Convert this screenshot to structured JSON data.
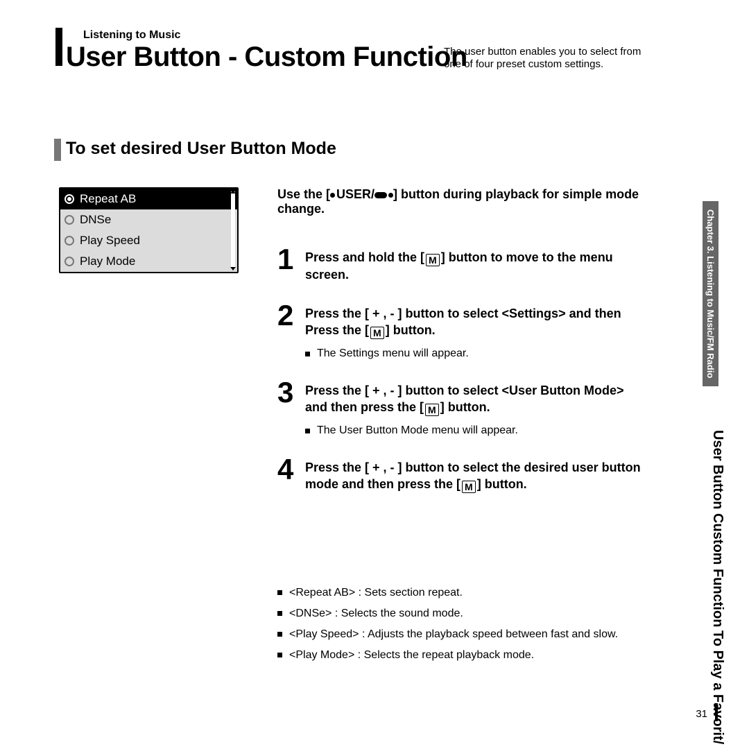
{
  "breadcrumb": "Listening to Music",
  "title": "User Button - Custom Function",
  "title_desc": "The user button enables you to select from one of four preset custom settings.",
  "section_title": "To set desired User Button Mode",
  "device_menu": {
    "items": [
      "Repeat AB",
      "DNSe",
      "Play Speed",
      "Play Mode"
    ],
    "selected_index": 0
  },
  "intro_pre": "Use the [",
  "intro_user": "USER/",
  "intro_post": "] button during playback for simple mode change.",
  "steps": [
    {
      "num": "1",
      "main_pre": "Press and hold the [",
      "main_post": "] button to move to the menu screen."
    },
    {
      "num": "2",
      "main_pre": "Press the [ + , - ] button to select <Settings> and then Press the [",
      "main_post": "] button.",
      "sub": "The Settings menu will appear."
    },
    {
      "num": "3",
      "main_pre": "Press the [ + , - ] button to select <User Button Mode> and then press the [",
      "main_post": "] button.",
      "sub": "The User Button Mode menu will appear."
    },
    {
      "num": "4",
      "main_pre": "Press the [ + , - ] button to select the desired user button mode and then press the [",
      "main_post": "] button."
    }
  ],
  "mode_descriptions": [
    "<Repeat AB> : Sets section repeat.",
    "<DNSe> : Selects the sound mode.",
    "<Play Speed> : Adjusts the playback speed between fast and slow.",
    "<Play Mode> : Selects the repeat playback mode."
  ],
  "side_chapter": "Chapter 3.  Listening to Music/FM Radio",
  "side_line1": "To Play a Favorit/",
  "side_line2": "User Button Custom Function",
  "page_number": "31",
  "m_label": "M"
}
